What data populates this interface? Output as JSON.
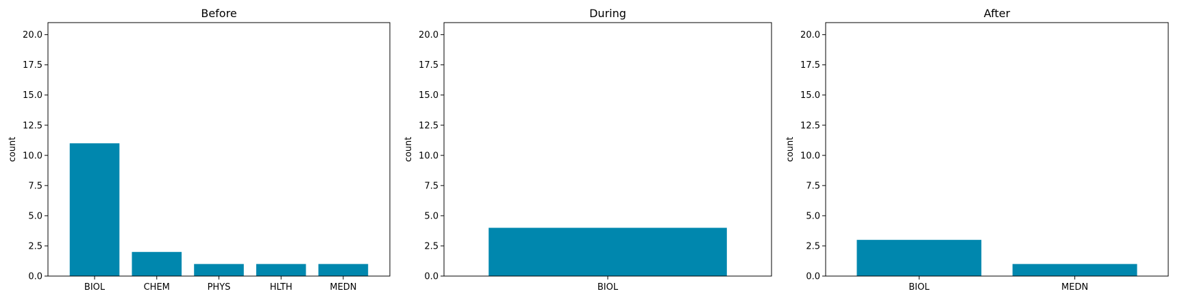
{
  "chart_data": [
    {
      "type": "bar",
      "title": "Before",
      "ylabel": "count",
      "categories": [
        "BIOL",
        "CHEM",
        "PHYS",
        "HLTH",
        "MEDN"
      ],
      "values": [
        11,
        2,
        1,
        1,
        1
      ],
      "ylim": [
        0,
        21
      ],
      "yticks": [
        "0.0",
        "2.5",
        "5.0",
        "7.5",
        "10.0",
        "12.5",
        "15.0",
        "17.5",
        "20.0"
      ],
      "bar_color": "#0087ae",
      "grid": false
    },
    {
      "type": "bar",
      "title": "During",
      "ylabel": "count",
      "categories": [
        "BIOL"
      ],
      "values": [
        4
      ],
      "ylim": [
        0,
        21
      ],
      "yticks": [
        "0.0",
        "2.5",
        "5.0",
        "7.5",
        "10.0",
        "12.5",
        "15.0",
        "17.5",
        "20.0"
      ],
      "bar_color": "#0087ae",
      "grid": false
    },
    {
      "type": "bar",
      "title": "After",
      "ylabel": "count",
      "categories": [
        "BIOL",
        "MEDN"
      ],
      "values": [
        3,
        1
      ],
      "ylim": [
        0,
        21
      ],
      "yticks": [
        "0.0",
        "2.5",
        "5.0",
        "7.5",
        "10.0",
        "12.5",
        "15.0",
        "17.5",
        "20.0"
      ],
      "bar_color": "#0087ae",
      "grid": false
    }
  ]
}
